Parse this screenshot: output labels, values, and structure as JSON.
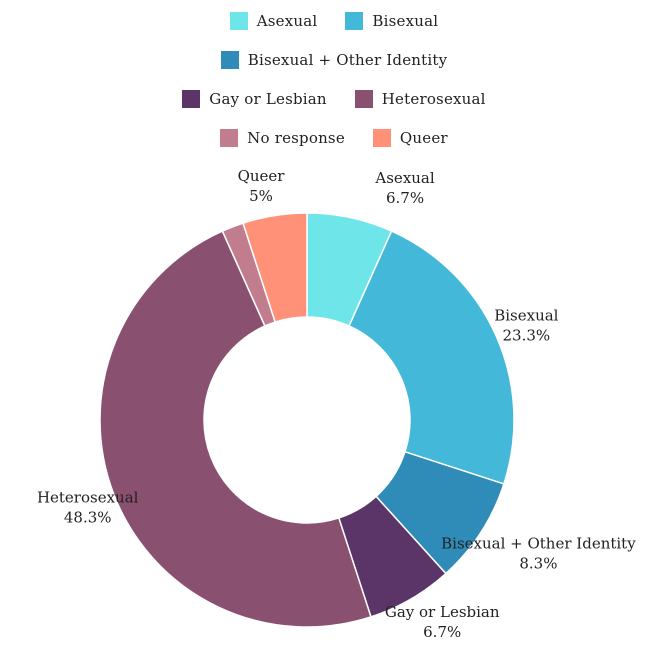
{
  "chart_data": {
    "type": "pie",
    "donut": true,
    "title": "",
    "legend_position": "top",
    "slices": [
      {
        "label": "Asexual",
        "value": 6.7,
        "display": "6.7%",
        "color": "#6ee5e8"
      },
      {
        "label": "Bisexual",
        "value": 23.3,
        "display": "23.3%",
        "color": "#44b8d8"
      },
      {
        "label": "Bisexual + Other Identity",
        "value": 8.3,
        "display": "8.3%",
        "color": "#2f8bb8"
      },
      {
        "label": "Gay or Lesbian",
        "value": 6.7,
        "display": "6.7%",
        "color": "#5b3468"
      },
      {
        "label": "Heterosexual",
        "value": 48.3,
        "display": "48.3%",
        "color": "#8a5070"
      },
      {
        "label": "No response",
        "value": 1.7,
        "display": "",
        "color": "#c17d8e"
      },
      {
        "label": "Queer",
        "value": 5,
        "display": "5%",
        "color": "#ff9178"
      }
    ],
    "legend_rows": [
      [
        "Asexual",
        "Bisexual"
      ],
      [
        "Bisexual + Other Identity"
      ],
      [
        "Gay or Lesbian",
        "Heterosexual"
      ],
      [
        "No response",
        "Queer"
      ]
    ]
  }
}
